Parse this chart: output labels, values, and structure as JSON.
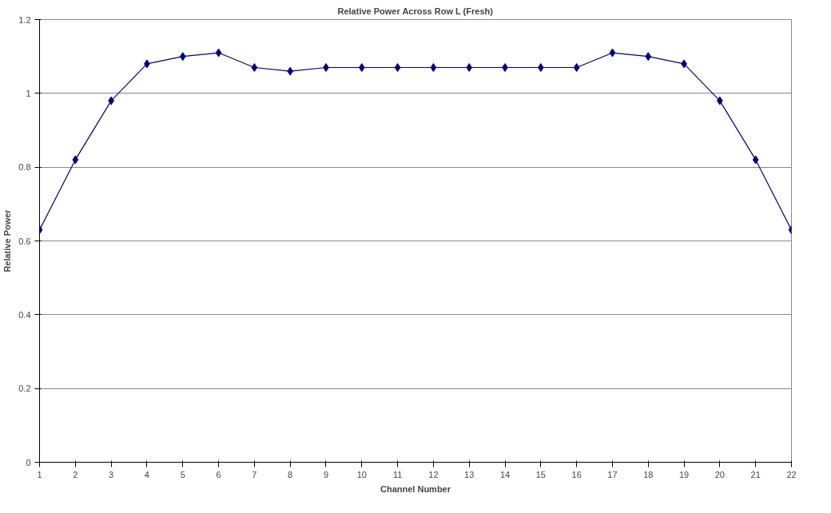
{
  "chart_data": {
    "type": "line",
    "title": "Relative Power Across Row L (Fresh)",
    "xlabel": "Channel Number",
    "ylabel": "Relative Power",
    "x": [
      1,
      2,
      3,
      4,
      5,
      6,
      7,
      8,
      9,
      10,
      11,
      12,
      13,
      14,
      15,
      16,
      17,
      18,
      19,
      20,
      21,
      22
    ],
    "series": [
      {
        "color": "#000080",
        "values": [
          0.63,
          0.82,
          0.98,
          1.08,
          1.1,
          1.11,
          1.07,
          1.06,
          1.07,
          1.07,
          1.07,
          1.07,
          1.07,
          1.07,
          1.07,
          1.07,
          1.11,
          1.1,
          1.08,
          0.98,
          0.82,
          0.63
        ]
      }
    ],
    "xlim": [
      1,
      22
    ],
    "xticks": [
      1,
      2,
      3,
      4,
      5,
      6,
      7,
      8,
      9,
      10,
      11,
      12,
      13,
      14,
      15,
      16,
      17,
      18,
      19,
      20,
      21,
      22
    ],
    "ylim": [
      0,
      1.2
    ],
    "yticks": [
      0,
      0.2,
      0.4,
      0.6,
      0.8,
      1,
      1.2
    ],
    "grid": "y",
    "marker": "diamond",
    "line_style": "solid"
  }
}
